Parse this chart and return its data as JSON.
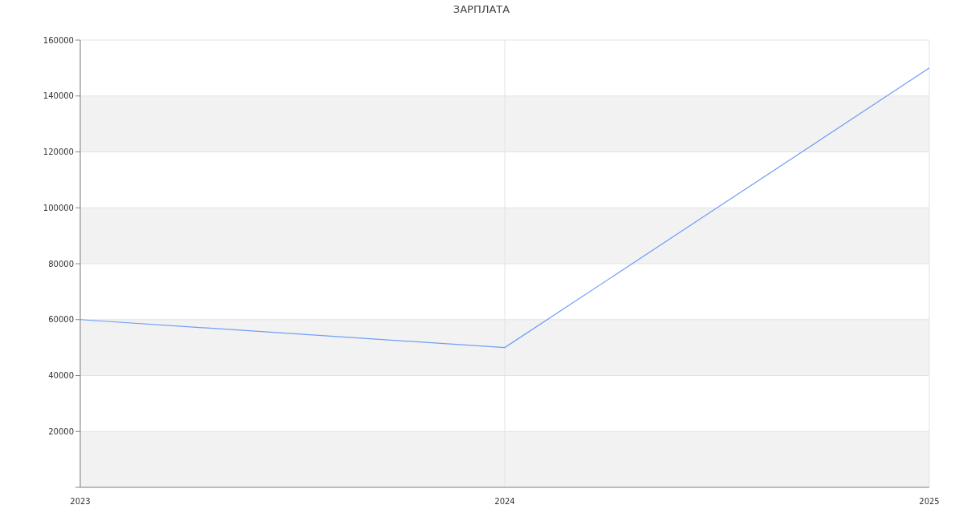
{
  "chart_data": {
    "type": "line",
    "title": "ЗАРПЛАТА",
    "x": [
      2023,
      2024,
      2025
    ],
    "series": [
      {
        "color": "#6f9ef8",
        "values": [
          60000,
          50000,
          150000
        ]
      }
    ],
    "xlim": [
      2023,
      2025
    ],
    "xticks": [
      2023,
      2024,
      2025
    ],
    "ylim": [
      0,
      160000
    ],
    "yticks": [
      {
        "value": 0,
        "label": null
      },
      20000,
      40000,
      60000,
      80000,
      100000,
      120000,
      140000,
      160000
    ],
    "grid": true,
    "marker": "none",
    "line_style": "solid"
  }
}
